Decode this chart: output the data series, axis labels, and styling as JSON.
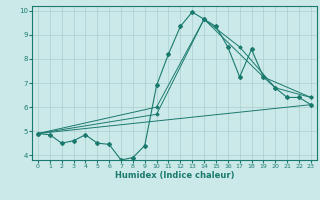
{
  "xlabel": "Humidex (Indice chaleur)",
  "background_color": "#cce9e9",
  "grid_color": "#aacfcf",
  "line_color": "#1a7a6e",
  "xlim": [
    -0.5,
    23.5
  ],
  "ylim": [
    3.8,
    10.2
  ],
  "xticks": [
    0,
    1,
    2,
    3,
    4,
    5,
    6,
    7,
    8,
    9,
    10,
    11,
    12,
    13,
    14,
    15,
    16,
    17,
    18,
    19,
    20,
    21,
    22,
    23
  ],
  "yticks": [
    4,
    5,
    6,
    7,
    8,
    9,
    10
  ],
  "series": {
    "line1_x": [
      0,
      1,
      2,
      3,
      4,
      5,
      6,
      7,
      8,
      9,
      10,
      11,
      12,
      13,
      14,
      15,
      16,
      17,
      18,
      19,
      20,
      21,
      22,
      23
    ],
    "line1_y": [
      4.9,
      4.85,
      4.5,
      4.6,
      4.85,
      4.5,
      4.45,
      3.8,
      3.9,
      4.4,
      6.9,
      8.2,
      9.35,
      9.95,
      9.65,
      9.35,
      8.5,
      7.25,
      8.4,
      7.25,
      6.8,
      6.4,
      6.4,
      6.1
    ],
    "line2_x": [
      0,
      23
    ],
    "line2_y": [
      4.9,
      6.1
    ],
    "line3_x": [
      0,
      10,
      14,
      19,
      23
    ],
    "line3_y": [
      4.9,
      6.0,
      9.65,
      7.25,
      6.4
    ],
    "line4_x": [
      0,
      10,
      14,
      17,
      20,
      23
    ],
    "line4_y": [
      4.9,
      5.7,
      9.65,
      8.5,
      6.8,
      6.4
    ]
  }
}
